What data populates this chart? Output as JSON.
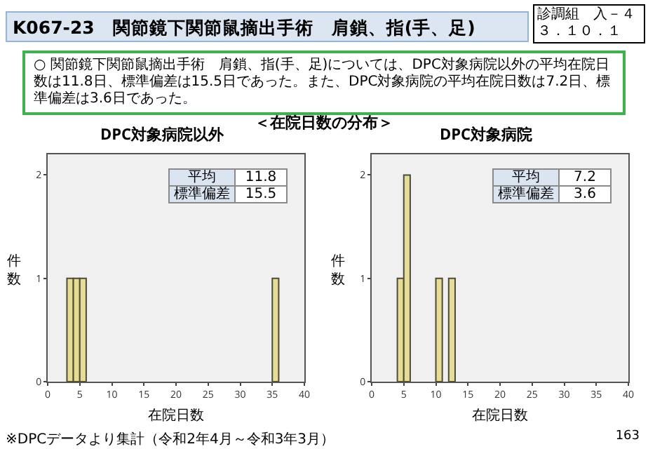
{
  "chart_data": [
    {
      "type": "histogram",
      "title": "DPC対象病院以外",
      "xlabel": "在院日数",
      "ylabel": "件数",
      "bins": [
        0,
        1,
        2,
        3,
        4,
        5,
        6,
        7,
        8,
        9,
        10,
        11,
        12,
        13,
        14,
        15,
        16,
        17,
        18,
        19,
        20,
        21,
        22,
        23,
        24,
        25,
        26,
        27,
        28,
        29,
        30,
        31,
        32,
        33,
        34,
        35,
        36,
        37,
        38,
        39,
        40
      ],
      "values": [
        0,
        0,
        0,
        1,
        1,
        1,
        0,
        0,
        0,
        0,
        0,
        0,
        0,
        0,
        0,
        0,
        0,
        0,
        0,
        0,
        0,
        0,
        0,
        0,
        0,
        0,
        0,
        0,
        0,
        0,
        0,
        0,
        0,
        0,
        0,
        1,
        0,
        0,
        0,
        0
      ],
      "color": "#e6dc96",
      "xlim": [
        0,
        40
      ],
      "xticks": [
        0,
        5,
        10,
        15,
        20,
        25,
        30,
        35,
        40
      ],
      "ylim": [
        0,
        2.2
      ],
      "yticks": [
        0,
        1,
        2
      ],
      "grid": false,
      "annotations": [
        "平均",
        "11.8",
        "標準偏差",
        "15.5",
        "K067-23　関節鏡下関節鼠摘出手術　肩鎖、指(手、足)",
        "診調組　入－４",
        "３．１０．１",
        "○ 関節鏡下関節鼠摘出手術　肩鎖、指(手、足)については、DPC対象病院以外の平均在院日数は11.8日、標準偏差は15.5日であった。また、DPC対象病院の平均在院日数は7.2日、標準偏差は3.6日であった。",
        "＜在院日数の分布＞",
        "※DPCデータより集計（令和2年4月～令和3年3月）",
        "163"
      ]
    },
    {
      "type": "histogram",
      "title": "DPC対象病院",
      "xlabel": "在院日数",
      "ylabel": "件数",
      "bins": [
        0,
        1,
        2,
        3,
        4,
        5,
        6,
        7,
        8,
        9,
        10,
        11,
        12,
        13,
        14,
        15,
        16,
        17,
        18,
        19,
        20,
        21,
        22,
        23,
        24,
        25,
        26,
        27,
        28,
        29,
        30,
        31,
        32,
        33,
        34,
        35,
        36,
        37,
        38,
        39,
        40
      ],
      "values": [
        0,
        0,
        0,
        0,
        1,
        2,
        0,
        0,
        0,
        0,
        1,
        0,
        1,
        0,
        0,
        0,
        0,
        0,
        0,
        0,
        0,
        0,
        0,
        0,
        0,
        0,
        0,
        0,
        0,
        0,
        0,
        0,
        0,
        0,
        0,
        0,
        0,
        0,
        0,
        0
      ],
      "color": "#e6dc96",
      "xlim": [
        0,
        40
      ],
      "xticks": [
        0,
        5,
        10,
        15,
        20,
        25,
        30,
        35,
        40
      ],
      "ylim": [
        0,
        2.2
      ],
      "yticks": [
        0,
        1,
        2
      ],
      "grid": false,
      "annotations": [
        "平均",
        "7.2",
        "標準偏差",
        "3.6"
      ]
    }
  ]
}
